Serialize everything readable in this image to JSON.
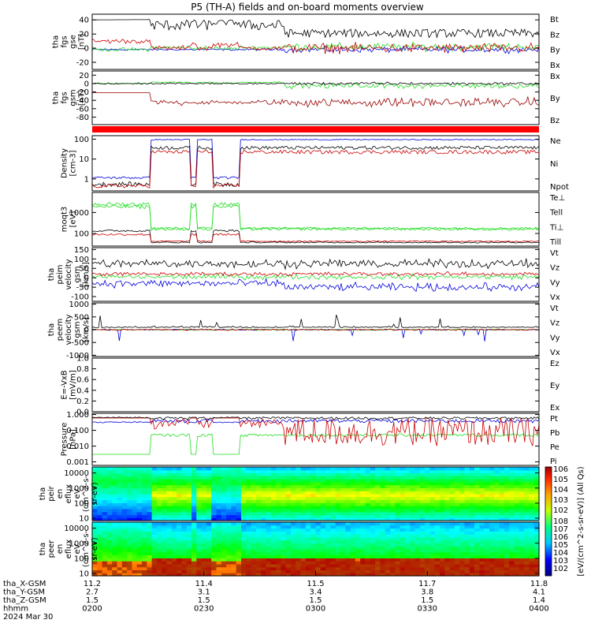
{
  "title": "P5 (TH-A) fields and on-board moments overview",
  "colors": {
    "black": "#000000",
    "red": "#cc0000",
    "green": "#22dd22",
    "blue": "#0000dd",
    "darkred": "#990000",
    "stripe": "#ff0000"
  },
  "chart_data": [
    {
      "id": "fgs-gse",
      "type": "line",
      "ylabel": [
        "tha",
        "fgs",
        "gse",
        "[nT]"
      ],
      "yticks": [
        -20,
        0,
        20,
        40
      ],
      "ylim": [
        -30,
        48
      ],
      "legend": [
        {
          "name": "Bt",
          "color": "#000000"
        },
        {
          "name": "Bz",
          "color": "#cc0000"
        },
        {
          "name": "By",
          "color": "#22dd22"
        },
        {
          "name": "Bx",
          "color": "#0000dd"
        }
      ]
    },
    {
      "id": "fgs-gsm",
      "type": "line",
      "ylabel": [
        "tha",
        "fgs",
        "gsm",
        "[nT]"
      ],
      "yticks": [
        -80,
        -60,
        -40,
        -20,
        0,
        20
      ],
      "ylim": [
        -98,
        30
      ],
      "legend": [
        {
          "name": "Bx",
          "color": "#000000"
        },
        {
          "name": "By",
          "color": "#22dd22"
        },
        {
          "name": "Bz",
          "color": "#990000"
        }
      ]
    },
    {
      "id": "density",
      "type": "line",
      "ylabel": [
        "Density",
        "[cm-3]"
      ],
      "yticks": [
        1,
        10,
        100
      ],
      "ytick_labels": [
        "1",
        "10",
        "100"
      ],
      "ylim": [
        0.25,
        150
      ],
      "log": true,
      "legend": [
        {
          "name": "Ne",
          "color": "#cc0000"
        },
        {
          "name": "Ni",
          "color": "#000000"
        },
        {
          "name": "Npot",
          "color": "#0000dd"
        }
      ]
    },
    {
      "id": "temperature",
      "type": "line",
      "ylabel": [
        "moqt3",
        "[eV]"
      ],
      "yticks": [
        100,
        1000
      ],
      "ytick_labels": [
        "100",
        "1000"
      ],
      "ylim": [
        25,
        9000
      ],
      "log": true,
      "legend": [
        {
          "name": "Te⊥",
          "color": "#cc0000"
        },
        {
          "name": "Tell",
          "color": "#000000"
        },
        {
          "name": "Ti⊥",
          "color": "#22dd22"
        },
        {
          "name": "Till",
          "color": "#22dd22"
        }
      ]
    },
    {
      "id": "peim-velocity",
      "type": "line",
      "ylabel": [
        "tha",
        "peim",
        "velocity",
        "gsm",
        "[km/s]"
      ],
      "yticks": [
        -100,
        -50,
        0,
        50,
        100,
        150
      ],
      "ylim": [
        -125,
        160
      ],
      "legend": [
        {
          "name": "Vt",
          "color": "#000000"
        },
        {
          "name": "Vz",
          "color": "#cc0000"
        },
        {
          "name": "Vy",
          "color": "#22dd22"
        },
        {
          "name": "Vx",
          "color": "#0000dd"
        }
      ]
    },
    {
      "id": "peem-velocity",
      "type": "line",
      "ylabel": [
        "tha",
        "peem",
        "velocity",
        "gsm",
        "[km/s]"
      ],
      "yticks": [
        -1000,
        -500,
        0,
        500,
        1000
      ],
      "ylim": [
        -1050,
        1050
      ],
      "legend": [
        {
          "name": "Vt",
          "color": "#000000"
        },
        {
          "name": "Vz",
          "color": "#cc0000"
        },
        {
          "name": "Vy",
          "color": "#22dd22"
        },
        {
          "name": "Vx",
          "color": "#0000dd"
        }
      ]
    },
    {
      "id": "efield",
      "type": "line",
      "ylabel": [
        "E=-VxB",
        "[mV/m]"
      ],
      "yticks": [
        0.0,
        0.2,
        0.4,
        0.6,
        0.8,
        1.0
      ],
      "ytick_labels": [
        "0.0",
        "0.2",
        "0.4",
        "0.6",
        "0.8",
        "1.0"
      ],
      "ylim": [
        0,
        1
      ],
      "legend": [
        {
          "name": "Ez",
          "color": "#cc0000"
        },
        {
          "name": "Ey",
          "color": "#22dd22"
        },
        {
          "name": "Ex",
          "color": "#0000dd"
        }
      ]
    },
    {
      "id": "pressure",
      "type": "line",
      "ylabel": [
        "Pressure",
        "[nPa]"
      ],
      "yticks": [
        0.001,
        0.01,
        0.1,
        1.0
      ],
      "ytick_labels": [
        "0.001",
        "0.010",
        "0.100",
        "1.000"
      ],
      "ylim": [
        0.0006,
        1.2
      ],
      "log": true,
      "legend": [
        {
          "name": "Pt",
          "color": "#000000"
        },
        {
          "name": "Pb",
          "color": "#cc0000"
        },
        {
          "name": "Pe",
          "color": "#22dd22"
        },
        {
          "name": "Pi",
          "color": "#0000dd"
        }
      ]
    },
    {
      "id": "peir-spec",
      "type": "heatmap",
      "ylabel": [
        "tha",
        "peir",
        "en",
        "eflux",
        "eV",
        "(cm^2-s-",
        "sr-eV)"
      ],
      "yticks": [
        10,
        100,
        1000,
        10000
      ],
      "ytick_labels": [
        "10",
        "100",
        "1000",
        "10000"
      ],
      "ylim": [
        7,
        25000
      ],
      "log": true
    },
    {
      "id": "peer-spec",
      "type": "heatmap",
      "ylabel": [
        "tha",
        "peer",
        "en",
        "eflux",
        "eV",
        "(cm^2-s-",
        "sr-eV)"
      ],
      "yticks": [
        10,
        100,
        1000,
        10000
      ],
      "ytick_labels": [
        "10",
        "100",
        "1000",
        "10000"
      ],
      "ylim": [
        7,
        25000
      ],
      "log": true
    }
  ],
  "colorbar": {
    "label": "[eV/(cm^2-s-sr-eV)] (All Qs)",
    "ticks_upper": [
      "10^6",
      "10^5",
      "10^4",
      "10^3",
      "10^2"
    ],
    "ticks_lower": [
      "10^8",
      "10^7",
      "10^6",
      "10^5",
      "10^4",
      "10^3",
      "10^2"
    ]
  },
  "x_axis": {
    "ticks": [
      "0200",
      "0230",
      "0300",
      "0330",
      "0400"
    ],
    "rows": [
      {
        "label": "tha_X-GSM",
        "values": [
          "11.2",
          "11.4",
          "11.5",
          "11.7",
          "11.8"
        ]
      },
      {
        "label": "tha_Y-GSM",
        "values": [
          "2.7",
          "3.1",
          "3.4",
          "3.8",
          "4.1"
        ]
      },
      {
        "label": "tha_Z-GSM",
        "values": [
          "1.5",
          "1.5",
          "1.5",
          "1.5",
          "1.4"
        ]
      },
      {
        "label": "hhmm",
        "values": [
          "0200",
          "0230",
          "0300",
          "0330",
          "0400"
        ]
      }
    ],
    "date": "2024 Mar 30"
  }
}
